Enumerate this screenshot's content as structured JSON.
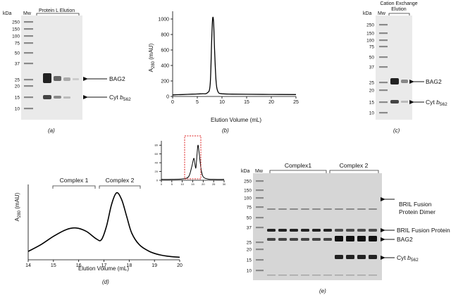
{
  "panel_a": {
    "label": "(a)",
    "kda": "kDa",
    "mw": "Mw",
    "group": "Protein L Elution",
    "markers": [
      "250",
      "150",
      "100",
      "75",
      "50",
      "37",
      "25",
      "20",
      "15",
      "10"
    ],
    "bands": [
      "BAG2",
      "Cyt b562"
    ]
  },
  "panel_b": {
    "label": "(b)",
    "ylabel": "A280 (mAU)",
    "xlabel": "Elution Volume (mL)",
    "x_ticks": [
      "0",
      "5",
      "10",
      "15",
      "20",
      "25"
    ],
    "y_ticks": [
      "0",
      "200",
      "400",
      "600",
      "800",
      "1000"
    ]
  },
  "panel_c": {
    "label": "(c)",
    "kda": "kDa",
    "mw": "Mw",
    "group_line1": "Cation Exchange",
    "group_line2": "Elution",
    "markers": [
      "250",
      "150",
      "100",
      "75",
      "50",
      "37",
      "25",
      "20",
      "15",
      "10"
    ],
    "bands": [
      "BAG2",
      "Cyt b562"
    ]
  },
  "panel_d": {
    "label": "(d)",
    "ylabel": "A280 (mAU)",
    "xlabel": "Elution Volume (mL)",
    "x_ticks": [
      "14",
      "15",
      "16",
      "17",
      "18",
      "19",
      "20"
    ],
    "complex1": "Complex 1",
    "complex2": "Complex 2",
    "inset_x_ticks": [
      "0",
      "5",
      "10",
      "15",
      "20",
      "25",
      "30"
    ],
    "inset_y_ticks": [
      "0",
      "20",
      "40",
      "60",
      "80"
    ]
  },
  "panel_e": {
    "label": "(e)",
    "kda": "kDa",
    "mw": "Mw",
    "complex1": "Complex1",
    "complex2": "Complex 2",
    "markers": [
      "250",
      "150",
      "100",
      "75",
      "50",
      "37",
      "25",
      "20",
      "15",
      "10"
    ],
    "bands": [
      "BRIL Fusion",
      "Protein Dimer",
      "BRIL Fusion Protein",
      "BAG2",
      "Cyt b562"
    ]
  },
  "chart_data": [
    {
      "panel": "b",
      "type": "line",
      "xlabel": "Elution Volume (mL)",
      "ylabel": "A280 (mAU)",
      "xlim": [
        0,
        25
      ],
      "ylim": [
        0,
        1100
      ],
      "x": [
        0,
        2,
        4,
        6,
        7,
        7.6,
        7.9,
        8.1,
        8.3,
        8.5,
        8.8,
        9.2,
        10,
        12,
        15,
        20,
        25
      ],
      "y": [
        20,
        25,
        30,
        35,
        45,
        150,
        700,
        1000,
        960,
        600,
        200,
        60,
        35,
        30,
        28,
        26,
        25
      ]
    },
    {
      "panel": "d",
      "type": "line",
      "xlabel": "Elution Volume (mL)",
      "ylabel": "A280 (mAU)",
      "xlim": [
        14,
        20
      ],
      "ylim": [
        0,
        90
      ],
      "x": [
        14,
        14.5,
        15,
        15.5,
        15.9,
        16.3,
        16.7,
        16.9,
        17.1,
        17.3,
        17.5,
        17.7,
        17.9,
        18.1,
        18.4,
        18.8,
        19.2,
        19.6,
        20
      ],
      "y": [
        10,
        18,
        28,
        36,
        38,
        34,
        25,
        24,
        40,
        66,
        80,
        72,
        52,
        32,
        18,
        10,
        6,
        4,
        3
      ]
    },
    {
      "panel": "d-inset",
      "type": "line",
      "xlim": [
        0,
        30
      ],
      "ylim": [
        0,
        90
      ],
      "x": [
        0,
        5,
        10,
        13,
        14.5,
        15.5,
        16,
        16.5,
        17,
        17.5,
        18,
        19,
        20,
        22,
        25,
        30
      ],
      "y": [
        2,
        2,
        3,
        8,
        30,
        50,
        38,
        28,
        55,
        80,
        65,
        25,
        8,
        3,
        2,
        2
      ]
    }
  ]
}
